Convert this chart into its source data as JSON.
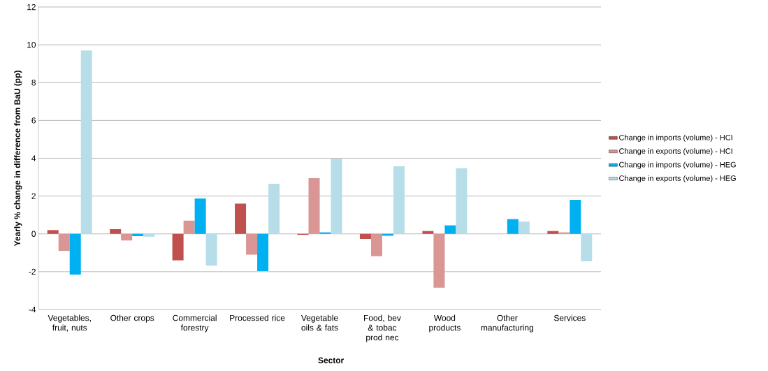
{
  "chart_data": {
    "type": "bar",
    "xlabel": "Sector",
    "ylabel": "Yearly % change in difference from BaU (pp)",
    "categories": [
      "Vegetables, fruit, nuts",
      "Other crops",
      "Commercial forestry",
      "Processed rice",
      "Vegetable oils & fats",
      "Food, bev & tobac prod nec",
      "Wood products",
      "Other manufacturing",
      "Services"
    ],
    "series": [
      {
        "name": "Change in imports (volume) - HCI",
        "color": "#c0504d",
        "values": [
          0.2,
          0.25,
          -1.4,
          1.6,
          -0.05,
          -0.27,
          0.15,
          0,
          0.15
        ]
      },
      {
        "name": "Change in exports (volume) - HCI",
        "color": "#d99694",
        "values": [
          -0.9,
          -0.35,
          0.7,
          -1.1,
          2.95,
          -1.18,
          -2.85,
          0,
          0.08
        ]
      },
      {
        "name": "Change in imports (volume) - HEG",
        "color": "#00b0f0",
        "values": [
          -2.15,
          -0.12,
          1.87,
          -1.97,
          0.08,
          -0.1,
          0.45,
          0.78,
          1.8
        ]
      },
      {
        "name": "Change in exports (volume) - HEG",
        "color": "#b7dee8",
        "values": [
          9.7,
          -0.15,
          -1.68,
          2.65,
          3.97,
          3.57,
          3.47,
          0.65,
          -1.45
        ]
      }
    ],
    "ylim": [
      -4,
      12
    ],
    "yticks": [
      -4,
      -2,
      0,
      2,
      4,
      6,
      8,
      10,
      12
    ],
    "grid": "y",
    "legend": "right"
  }
}
